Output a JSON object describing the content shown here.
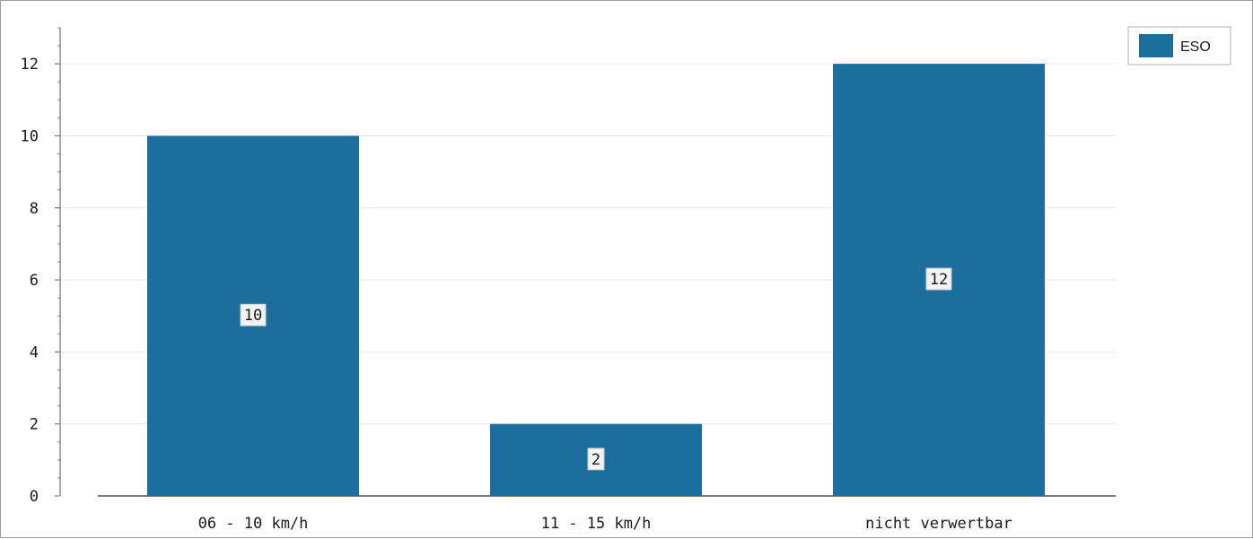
{
  "chart_data": {
    "type": "bar",
    "categories": [
      "06 - 10 km/h",
      "11 - 15 km/h",
      "nicht verwertbar"
    ],
    "series": [
      {
        "name": "ESO",
        "values": [
          10,
          2,
          12
        ],
        "color": "#1c6e9e"
      }
    ],
    "data_labels": [
      "10",
      "2",
      "12"
    ],
    "y_ticks": [
      "0",
      "2",
      "4",
      "6",
      "8",
      "10",
      "12"
    ],
    "ylim": [
      0,
      13
    ],
    "grid": true,
    "legend_position": "top-right"
  }
}
